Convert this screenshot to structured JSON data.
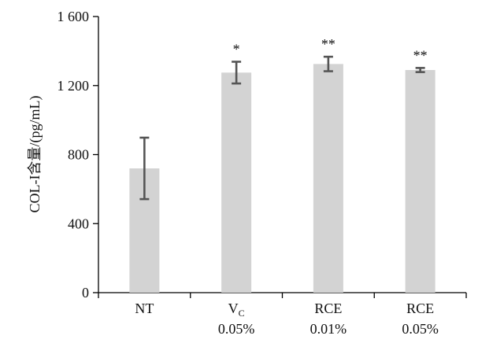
{
  "chart_data": {
    "type": "bar",
    "categories": [
      {
        "line1": "NT",
        "line2": ""
      },
      {
        "line1": "V",
        "sub": "C",
        "line2": "0.05%"
      },
      {
        "line1": "RCE",
        "line2": "0.01%"
      },
      {
        "line1": "RCE",
        "line2": "0.05%"
      }
    ],
    "values": [
      720,
      1275,
      1325,
      1290
    ],
    "errors": [
      178,
      63,
      42,
      12
    ],
    "significance": [
      "",
      "*",
      "**",
      "**"
    ],
    "ylabel": "COL-I含量/(pg/mL)",
    "ylim": [
      0,
      1600
    ],
    "yticks": [
      0,
      400,
      800,
      1200,
      1600
    ],
    "ytick_labels": [
      "0",
      "400",
      "800",
      "1 200",
      "1 600"
    ],
    "grid": false,
    "bar_color": "#d3d3d3",
    "error_color": "#555555"
  }
}
